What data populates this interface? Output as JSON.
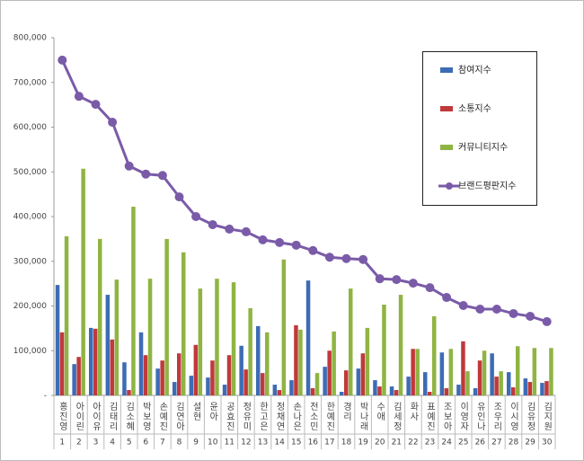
{
  "chart_data": {
    "type": "bar",
    "categories": [
      "홍진영",
      "아이린",
      "아이유",
      "김태리",
      "김소혜",
      "박보영",
      "손예진",
      "김연아",
      "설현",
      "윤아",
      "공효진",
      "정유미",
      "한고은",
      "정채연",
      "손나은",
      "전소민",
      "한예진",
      "경리",
      "박나래",
      "수애",
      "김세정",
      "화사",
      "표예진",
      "조보아",
      "이영자",
      "유인나",
      "조우리",
      "이시영",
      "김유정",
      "김지원"
    ],
    "ranks": [
      1,
      2,
      3,
      4,
      5,
      6,
      7,
      8,
      9,
      10,
      11,
      12,
      13,
      14,
      15,
      16,
      17,
      18,
      19,
      20,
      21,
      22,
      23,
      24,
      25,
      26,
      27,
      28,
      29,
      30
    ],
    "ylim": [
      0,
      800000
    ],
    "yticks": [
      {
        "value": 0,
        "label": "-"
      },
      {
        "value": 100000,
        "label": "100,000"
      },
      {
        "value": 200000,
        "label": "200,000"
      },
      {
        "value": 300000,
        "label": "300,000"
      },
      {
        "value": 400000,
        "label": "400,000"
      },
      {
        "value": 500000,
        "label": "500,000"
      },
      {
        "value": 600000,
        "label": "600,000"
      },
      {
        "value": 700000,
        "label": "700,000"
      },
      {
        "value": 800000,
        "label": "800,000"
      }
    ],
    "series": [
      {
        "name": "참여지수",
        "type": "bar",
        "color": "#3d6cb5",
        "values": [
          247000,
          70000,
          151000,
          225000,
          74000,
          141000,
          60000,
          30000,
          44000,
          40000,
          24000,
          111000,
          155000,
          24000,
          34000,
          257000,
          64000,
          8000,
          60000,
          34000,
          20000,
          42000,
          52000,
          96000,
          24000,
          16000,
          94000,
          52000,
          38000,
          28000
        ]
      },
      {
        "name": "소통지수",
        "type": "bar",
        "color": "#c0393b",
        "values": [
          141000,
          86000,
          149000,
          125000,
          12000,
          90000,
          78000,
          94000,
          113000,
          78000,
          90000,
          58000,
          50000,
          12000,
          157000,
          16000,
          100000,
          56000,
          94000,
          20000,
          12000,
          104000,
          8000,
          16000,
          121000,
          78000,
          42000,
          18000,
          30000,
          32000
        ]
      },
      {
        "name": "커뮤니티지수",
        "type": "bar",
        "color": "#8fb443",
        "values": [
          356000,
          507000,
          350000,
          259000,
          422000,
          261000,
          350000,
          320000,
          239000,
          261000,
          253000,
          195000,
          141000,
          304000,
          147000,
          50000,
          143000,
          239000,
          151000,
          203000,
          225000,
          104000,
          177000,
          104000,
          54000,
          100000,
          54000,
          110000,
          106000,
          106000
        ]
      },
      {
        "name": "브랜드평판지수",
        "type": "line",
        "color": "#7a5ba8",
        "values": [
          750000,
          669000,
          651000,
          611000,
          513000,
          495000,
          492000,
          444000,
          400000,
          382000,
          372000,
          366000,
          348000,
          342000,
          336000,
          324000,
          309000,
          306000,
          304000,
          261000,
          259000,
          251000,
          241000,
          219000,
          201000,
          193000,
          193000,
          183000,
          177000,
          165000
        ]
      }
    ]
  }
}
